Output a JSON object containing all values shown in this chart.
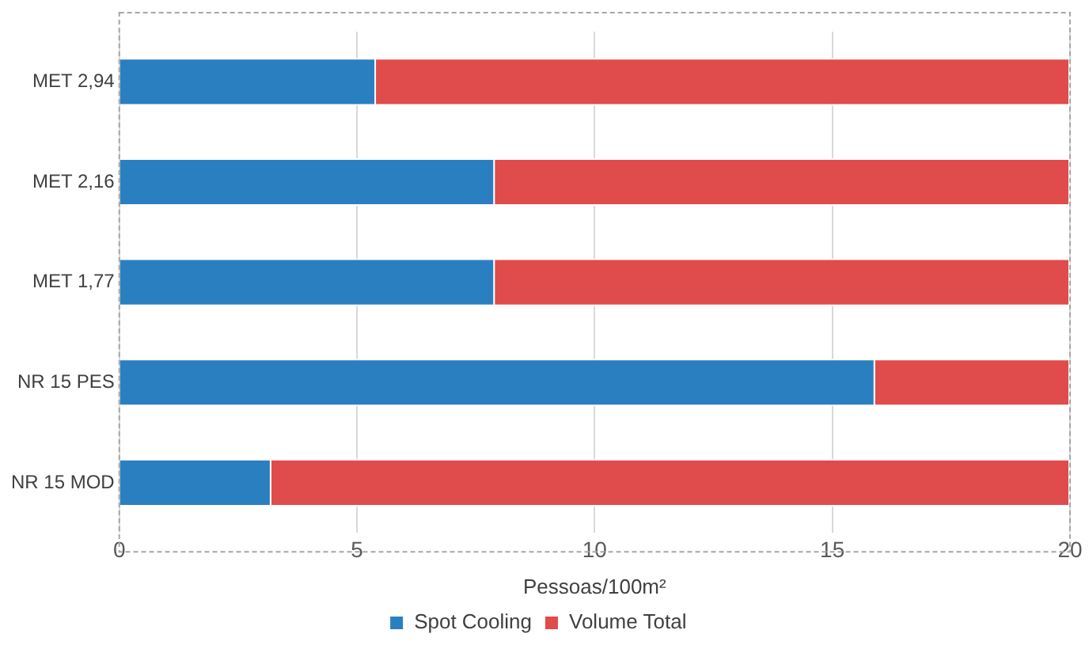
{
  "chart_data": {
    "type": "bar",
    "orientation": "horizontal",
    "stacked": true,
    "categories": [
      "MET 2,94",
      "MET 2,16",
      "MET 1,77",
      "NR 15 PES",
      "NR 15 MOD"
    ],
    "series": [
      {
        "name": "Spot Cooling",
        "color": "#2a7fc1",
        "values": [
          5.4,
          7.9,
          7.9,
          15.9,
          3.2
        ]
      },
      {
        "name": "Volume Total",
        "color": "#e04b4b",
        "values": [
          14.6,
          12.1,
          12.1,
          4.1,
          16.8
        ]
      }
    ],
    "xlabel": "Pessoas/100m²",
    "xlim": [
      0,
      20
    ],
    "xticks": [
      0,
      5,
      10,
      15,
      20
    ],
    "grid": "x",
    "legend": "bottom"
  }
}
